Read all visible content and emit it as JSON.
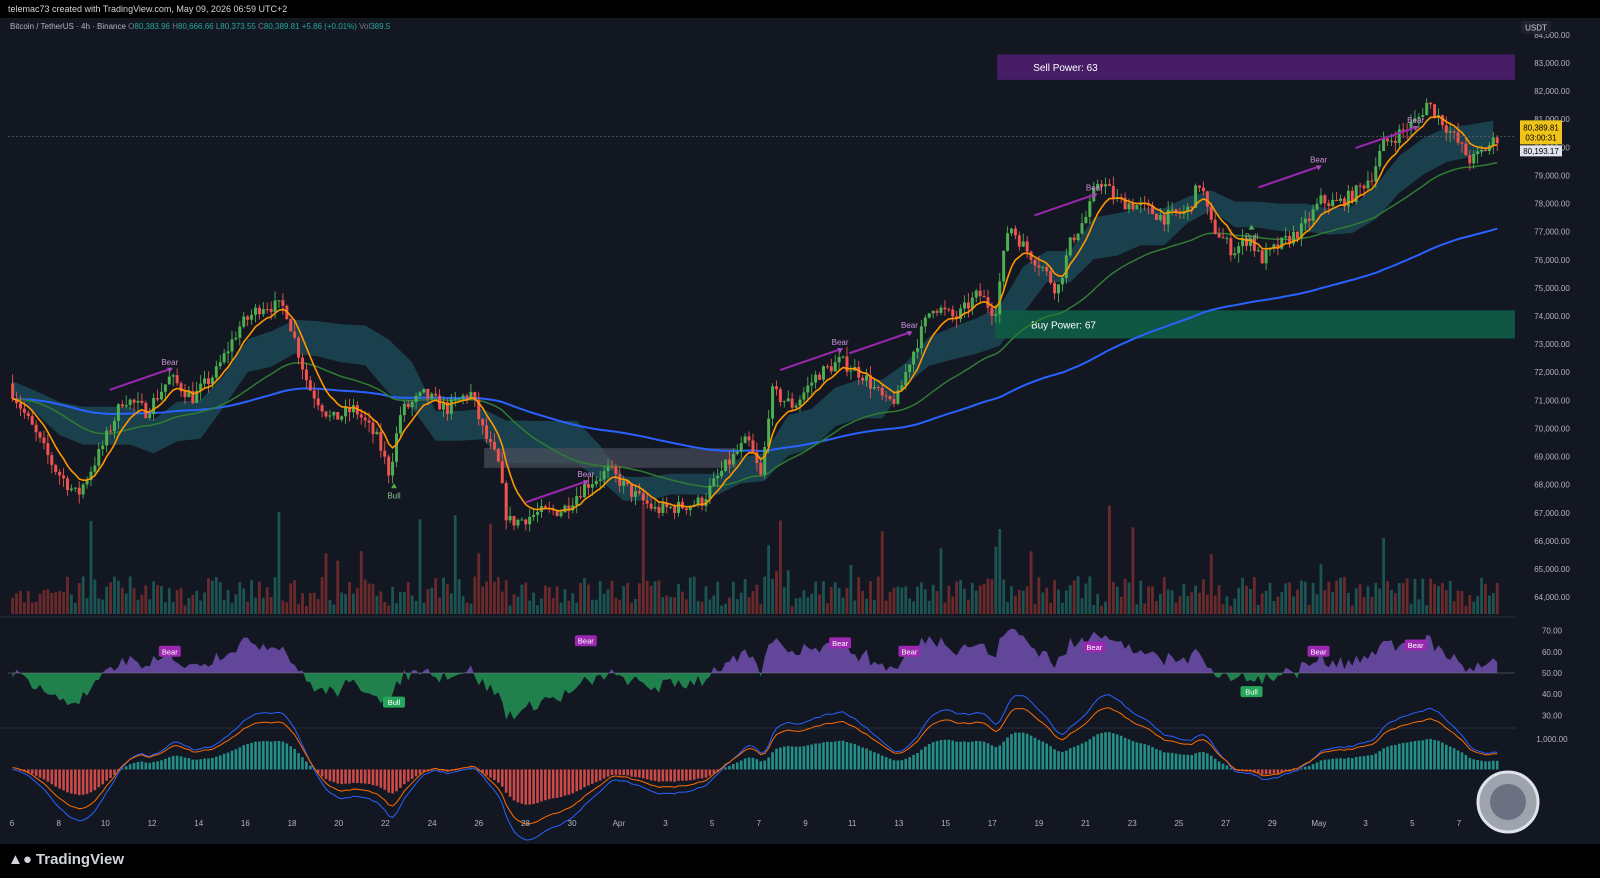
{
  "header": {
    "credit": "telemac73 created with TradingView.com, May 09, 2026 06:59 UTC+2"
  },
  "legend": {
    "symbol": "Bitcoin / TetherUS · 4h · Binance",
    "o_label": "O",
    "o": "80,383.96",
    "h_label": "H",
    "h": "80,666.66",
    "l_label": "L",
    "l": "80,373.55",
    "c_label": "C",
    "c": "80,389.81",
    "change": "+5.86 (+0.01%)",
    "vol_label": "Vol",
    "vol": "389.5"
  },
  "footer": {
    "logo": "TradingView"
  },
  "colors": {
    "background": "#131722",
    "up": "#4caf50",
    "down": "#ef5350",
    "ema_fast": "#ff9800",
    "ema_mid": "#2e7d32",
    "ema_slow": "#2962ff",
    "cloud": "#1f5b6b",
    "sell_zone": "#4a1d6b",
    "buy_zone": "#0f5a46",
    "bear_label": "#9c27b0",
    "bull_label": "#26a65b",
    "price_tag": "#f0c419"
  },
  "chart_data": [
    {
      "type": "candlestick",
      "axis_currency": "USDT",
      "y_ticks": [
        "84,000.00",
        "83,000.00",
        "82,000.00",
        "81,000.00",
        "80,000.00",
        "79,000.00",
        "78,000.00",
        "77,000.00",
        "76,000.00",
        "75,000.00",
        "74,000.00",
        "73,000.00",
        "72,000.00",
        "71,000.00",
        "70,000.00",
        "69,000.00",
        "68,000.00",
        "67,000.00",
        "66,000.00",
        "65,000.00",
        "64,000.00"
      ],
      "x_ticks": [
        "6",
        "8",
        "10",
        "12",
        "14",
        "16",
        "18",
        "20",
        "22",
        "24",
        "26",
        "28",
        "30",
        "Apr",
        "3",
        "5",
        "7",
        "9",
        "11",
        "13",
        "15",
        "17",
        "19",
        "21",
        "23",
        "25",
        "27",
        "29",
        "May",
        "3",
        "5",
        "7"
      ],
      "ylim": [
        63400,
        84600
      ],
      "price_path": [
        {
          "x": 6,
          "y": 71600
        },
        {
          "x": 8,
          "y": 68600
        },
        {
          "x": 9,
          "y": 67600
        },
        {
          "x": 10,
          "y": 69200
        },
        {
          "x": 11,
          "y": 71100
        },
        {
          "x": 12,
          "y": 70600
        },
        {
          "x": 13,
          "y": 71800
        },
        {
          "x": 14,
          "y": 71100
        },
        {
          "x": 15,
          "y": 72000
        },
        {
          "x": 16,
          "y": 73600
        },
        {
          "x": 17,
          "y": 74400
        },
        {
          "x": 18,
          "y": 74300
        },
        {
          "x": 19,
          "y": 71500
        },
        {
          "x": 20,
          "y": 70300
        },
        {
          "x": 21,
          "y": 70700
        },
        {
          "x": 22,
          "y": 69600
        },
        {
          "x": 22.5,
          "y": 68400
        },
        {
          "x": 23,
          "y": 70600
        },
        {
          "x": 24,
          "y": 71200
        },
        {
          "x": 25,
          "y": 70700
        },
        {
          "x": 26,
          "y": 71300
        },
        {
          "x": 26.6,
          "y": 69800
        },
        {
          "x": 27.2,
          "y": 68800
        },
        {
          "x": 27.6,
          "y": 66700
        },
        {
          "x": 28,
          "y": 66700
        },
        {
          "x": 29,
          "y": 67000
        },
        {
          "x": 30,
          "y": 67100
        },
        {
          "x": 31,
          "y": 68000
        },
        {
          "x": 32,
          "y": 68500
        },
        {
          "x": 33,
          "y": 67700
        },
        {
          "x": 34,
          "y": 67100
        },
        {
          "x": 35,
          "y": 67200
        },
        {
          "x": 36,
          "y": 67400
        },
        {
          "x": 37,
          "y": 68600
        },
        {
          "x": 38,
          "y": 69600
        },
        {
          "x": 38.6,
          "y": 68200
        },
        {
          "x": 39,
          "y": 71300
        },
        {
          "x": 40,
          "y": 70800
        },
        {
          "x": 41,
          "y": 71900
        },
        {
          "x": 42,
          "y": 72400
        },
        {
          "x": 43,
          "y": 71900
        },
        {
          "x": 44,
          "y": 70900
        },
        {
          "x": 44.5,
          "y": 71100
        },
        {
          "x": 45,
          "y": 72400
        },
        {
          "x": 46,
          "y": 74400
        },
        {
          "x": 47,
          "y": 73900
        },
        {
          "x": 48,
          "y": 74800
        },
        {
          "x": 48.7,
          "y": 74100
        },
        {
          "x": 49.3,
          "y": 77300
        },
        {
          "x": 50,
          "y": 76400
        },
        {
          "x": 50.7,
          "y": 75800
        },
        {
          "x": 51.4,
          "y": 74900
        },
        {
          "x": 52,
          "y": 76700
        },
        {
          "x": 52.7,
          "y": 77600
        },
        {
          "x": 53.2,
          "y": 78900
        },
        {
          "x": 54,
          "y": 78100
        },
        {
          "x": 55,
          "y": 77900
        },
        {
          "x": 56,
          "y": 77500
        },
        {
          "x": 57,
          "y": 77700
        },
        {
          "x": 57.6,
          "y": 78800
        },
        {
          "x": 58,
          "y": 77300
        },
        {
          "x": 59,
          "y": 76300
        },
        {
          "x": 59.7,
          "y": 76800
        },
        {
          "x": 60.2,
          "y": 76000
        },
        {
          "x": 61,
          "y": 76500
        },
        {
          "x": 62,
          "y": 77100
        },
        {
          "x": 62.8,
          "y": 78100
        },
        {
          "x": 63.5,
          "y": 78000
        },
        {
          "x": 64.2,
          "y": 78300
        },
        {
          "x": 65,
          "y": 79000
        },
        {
          "x": 65.5,
          "y": 80100
        },
        {
          "x": 66.2,
          "y": 80500
        },
        {
          "x": 67,
          "y": 81000
        },
        {
          "x": 67.4,
          "y": 81600
        },
        {
          "x": 68,
          "y": 81000
        },
        {
          "x": 68.7,
          "y": 80200
        },
        {
          "x": 69.3,
          "y": 79500
        },
        {
          "x": 70,
          "y": 80000
        },
        {
          "x": 70.5,
          "y": 80390
        }
      ],
      "last_price": "80,389.81",
      "countdown": "03:00:31",
      "reference_price": "80,193.17",
      "zones": [
        {
          "label": "Sell Power: 63",
          "top": 83300,
          "bottom": 82400
        },
        {
          "label": "Buy Power: 67",
          "top": 74200,
          "bottom": 73200
        }
      ],
      "annotations": {
        "bear_text": "Bear",
        "bull_text": "Bull",
        "bear": [
          {
            "x": 13,
            "y": 72300
          },
          {
            "x": 31,
            "y": 68300
          },
          {
            "x": 42,
            "y": 73000
          },
          {
            "x": 45,
            "y": 73600
          },
          {
            "x": 53,
            "y": 78500
          },
          {
            "x": 62.7,
            "y": 79500
          },
          {
            "x": 66.9,
            "y": 80900
          }
        ],
        "bull": [
          {
            "x": 22.7,
            "y": 67800
          },
          {
            "x": 59.8,
            "y": 77000
          }
        ]
      }
    },
    {
      "type": "line",
      "name": "oscillator",
      "y_ticks": [
        "70.00",
        "60.00",
        "50.00",
        "40.00",
        "30.00"
      ],
      "ylim": [
        25,
        75
      ],
      "midline": 50,
      "labels": [
        {
          "text": "Bear",
          "x": 13,
          "y": 60
        },
        {
          "text": "Bull",
          "x": 22.7,
          "y": 36
        },
        {
          "text": "Bear",
          "x": 31,
          "y": 65
        },
        {
          "text": "Bear",
          "x": 42,
          "y": 64
        },
        {
          "text": "Bear",
          "x": 45,
          "y": 60
        },
        {
          "text": "Bear",
          "x": 53,
          "y": 62
        },
        {
          "text": "Bull",
          "x": 59.8,
          "y": 41
        },
        {
          "text": "Bear",
          "x": 62.7,
          "y": 60
        },
        {
          "text": "Bear",
          "x": 66.9,
          "y": 63
        }
      ]
    },
    {
      "type": "bar",
      "name": "macd",
      "y_ticks": [
        "1,000.00"
      ],
      "ylim": [
        -1600,
        1300
      ]
    }
  ]
}
